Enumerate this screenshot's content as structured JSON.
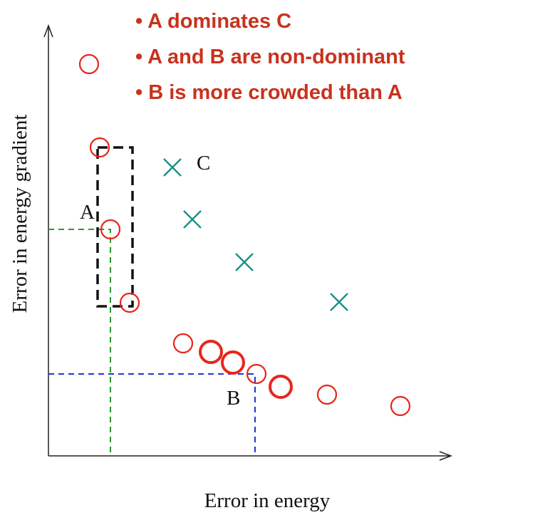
{
  "annotations": [
    "• A dominates C",
    "• A and B are non-dominant",
    "• B is more crowded than A"
  ],
  "x_axis_label": "Error in energy",
  "y_axis_label": "Error in energy gradient",
  "point_labels": {
    "a": "A",
    "b": "B",
    "c": "C"
  }
}
